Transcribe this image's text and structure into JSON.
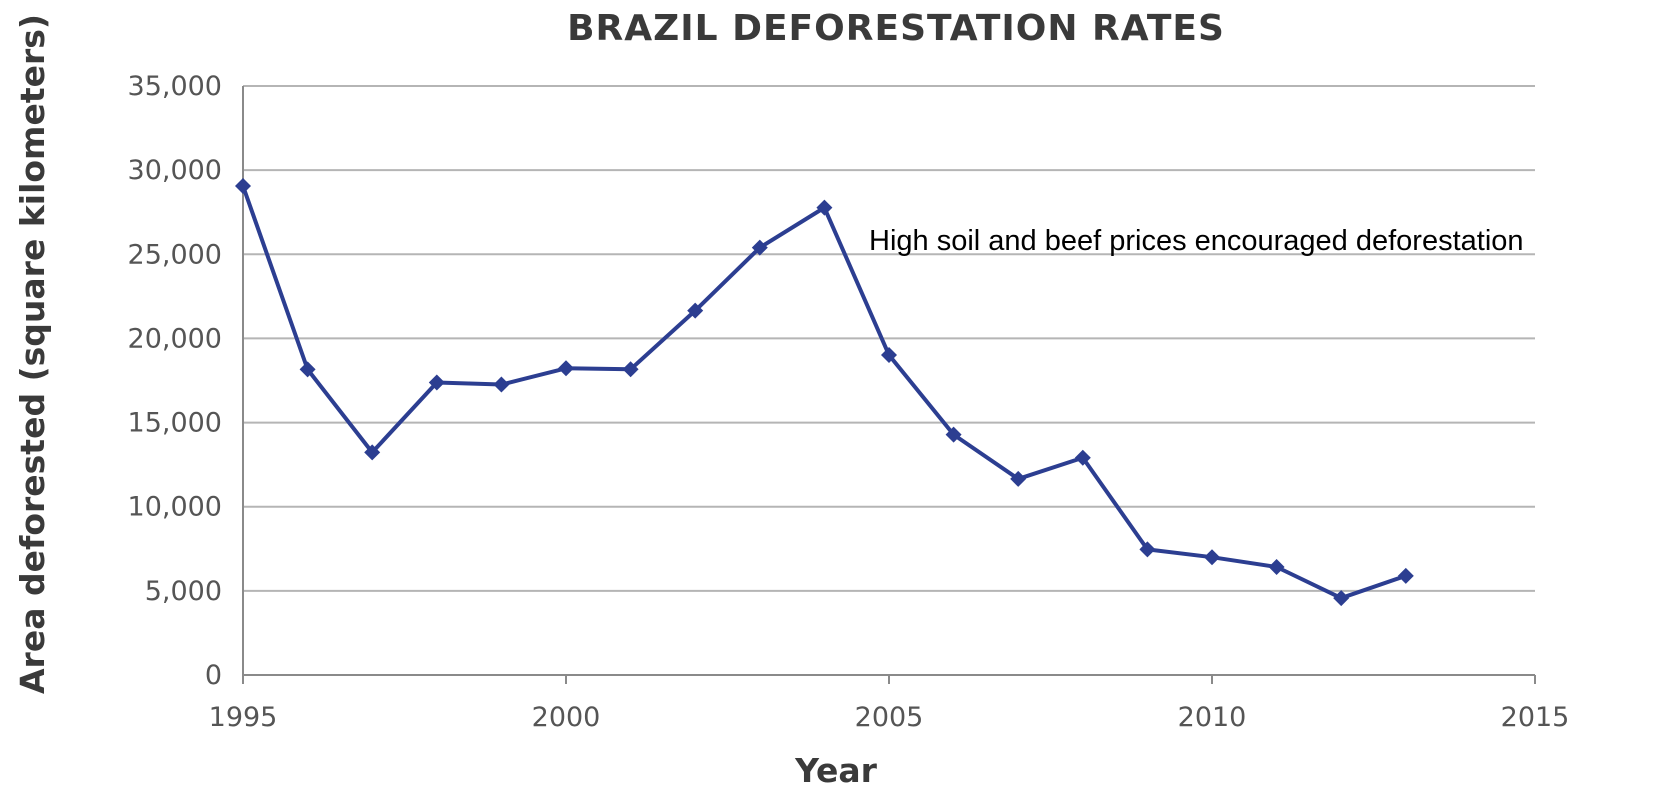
{
  "chart_data": {
    "type": "line",
    "title": "BRAZIL DEFORESTATION RATES",
    "xlabel": "Year",
    "ylabel": "Area deforested (square kilometers)",
    "xlim": [
      1995,
      2015
    ],
    "ylim": [
      0,
      35000
    ],
    "x_ticks": [
      1995,
      2000,
      2005,
      2010,
      2015
    ],
    "x_tick_labels": [
      "1995",
      "2000",
      "2005",
      "2010",
      "2015"
    ],
    "y_ticks": [
      0,
      5000,
      10000,
      15000,
      20000,
      25000,
      30000,
      35000
    ],
    "y_tick_labels": [
      "0",
      "5,000",
      "10,000",
      "15,000",
      "20,000",
      "25,000",
      "30,000",
      "35,000"
    ],
    "grid": "horizontal",
    "series": [
      {
        "x": [
          1995,
          1996,
          1997,
          1998,
          1999,
          2000,
          2001,
          2002,
          2003,
          2004,
          2005,
          2006,
          2007,
          2008,
          2009,
          2010,
          2011,
          2012,
          2013
        ],
        "values": [
          29059,
          18161,
          13227,
          17383,
          17259,
          18226,
          18165,
          21651,
          25396,
          27772,
          19014,
          14286,
          11651,
          12911,
          7464,
          7000,
          6418,
          4571,
          5891
        ],
        "color": "#2c3e91",
        "marker": "diamond"
      }
    ],
    "annotations": [
      {
        "text": "High soil and beef prices encouraged deforestation"
      }
    ]
  }
}
